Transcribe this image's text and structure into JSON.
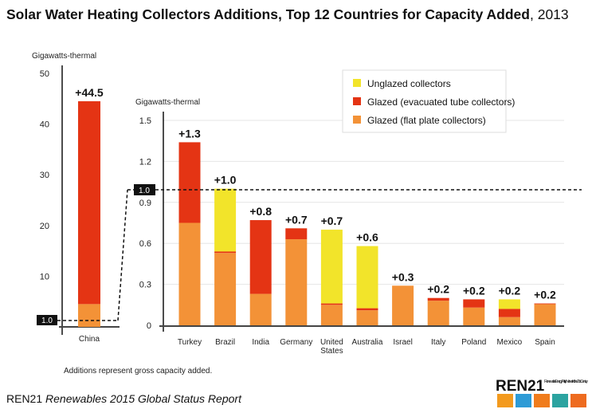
{
  "title": "Solar Water Heating Collectors Additions, Top 12 Countries for Capacity Added",
  "title_year": ", 2013",
  "note": "Additions represent gross capacity added.",
  "footer": {
    "org": "REN21",
    "report": "Renewables 2015 Global Status Report"
  },
  "logo": {
    "text": "REN21",
    "tagline": "Renewable Energy Policy Network for the 21st Century",
    "icons": [
      "sun-icon",
      "wind-icon",
      "power-icon",
      "water-icon",
      "leaf-icon"
    ]
  },
  "colors": {
    "unglazed": "#f2e42a",
    "evacuated": "#e43414",
    "flat": "#f39237"
  },
  "chart_data": [
    {
      "type": "bar",
      "stacked": true,
      "ylabel": "Gigawatts-thermal",
      "ylim": [
        0,
        50
      ],
      "yticks": [
        0,
        10,
        20,
        30,
        40,
        50
      ],
      "categories": [
        "China"
      ],
      "total_labels": [
        "+44.5"
      ],
      "reference_label": "1.0",
      "series": [
        {
          "name": "Glazed (flat plate collectors)",
          "values": [
            4.5
          ]
        },
        {
          "name": "Glazed (evacuated tube collectors)",
          "values": [
            40.0
          ]
        },
        {
          "name": "Unglazed collectors",
          "values": [
            0
          ]
        }
      ]
    },
    {
      "type": "bar",
      "stacked": true,
      "ylabel": "Gigawatts-thermal",
      "ylim": [
        0,
        1.5
      ],
      "yticks": [
        "0",
        "0.3",
        "0.6",
        "0.9",
        "1.2",
        "1.5"
      ],
      "grid": true,
      "legend": "top-right",
      "reference_line": 1.0,
      "reference_label": "1.0",
      "categories": [
        "Turkey",
        "Brazil",
        "India",
        "Germany",
        "United States",
        "Australia",
        "Israel",
        "Italy",
        "Poland",
        "Mexico",
        "Spain"
      ],
      "total_labels": [
        "+1.3",
        "+1.0",
        "+0.8",
        "+0.7",
        "+0.7",
        "+0.6",
        "+0.3",
        "+0.2",
        "+0.2",
        "+0.2",
        "+0.2"
      ],
      "series": [
        {
          "name": "Glazed (flat plate collectors)",
          "values": [
            0.75,
            0.53,
            0.23,
            0.63,
            0.15,
            0.11,
            0.29,
            0.18,
            0.13,
            0.06,
            0.155
          ]
        },
        {
          "name": "Glazed (evacuated tube collectors)",
          "values": [
            0.59,
            0.01,
            0.54,
            0.08,
            0.01,
            0.015,
            0,
            0.02,
            0.06,
            0.06,
            0.005
          ]
        },
        {
          "name": "Unglazed collectors",
          "values": [
            0,
            0.46,
            0,
            0,
            0.54,
            0.455,
            0,
            0,
            0,
            0.07,
            0
          ]
        }
      ]
    }
  ]
}
